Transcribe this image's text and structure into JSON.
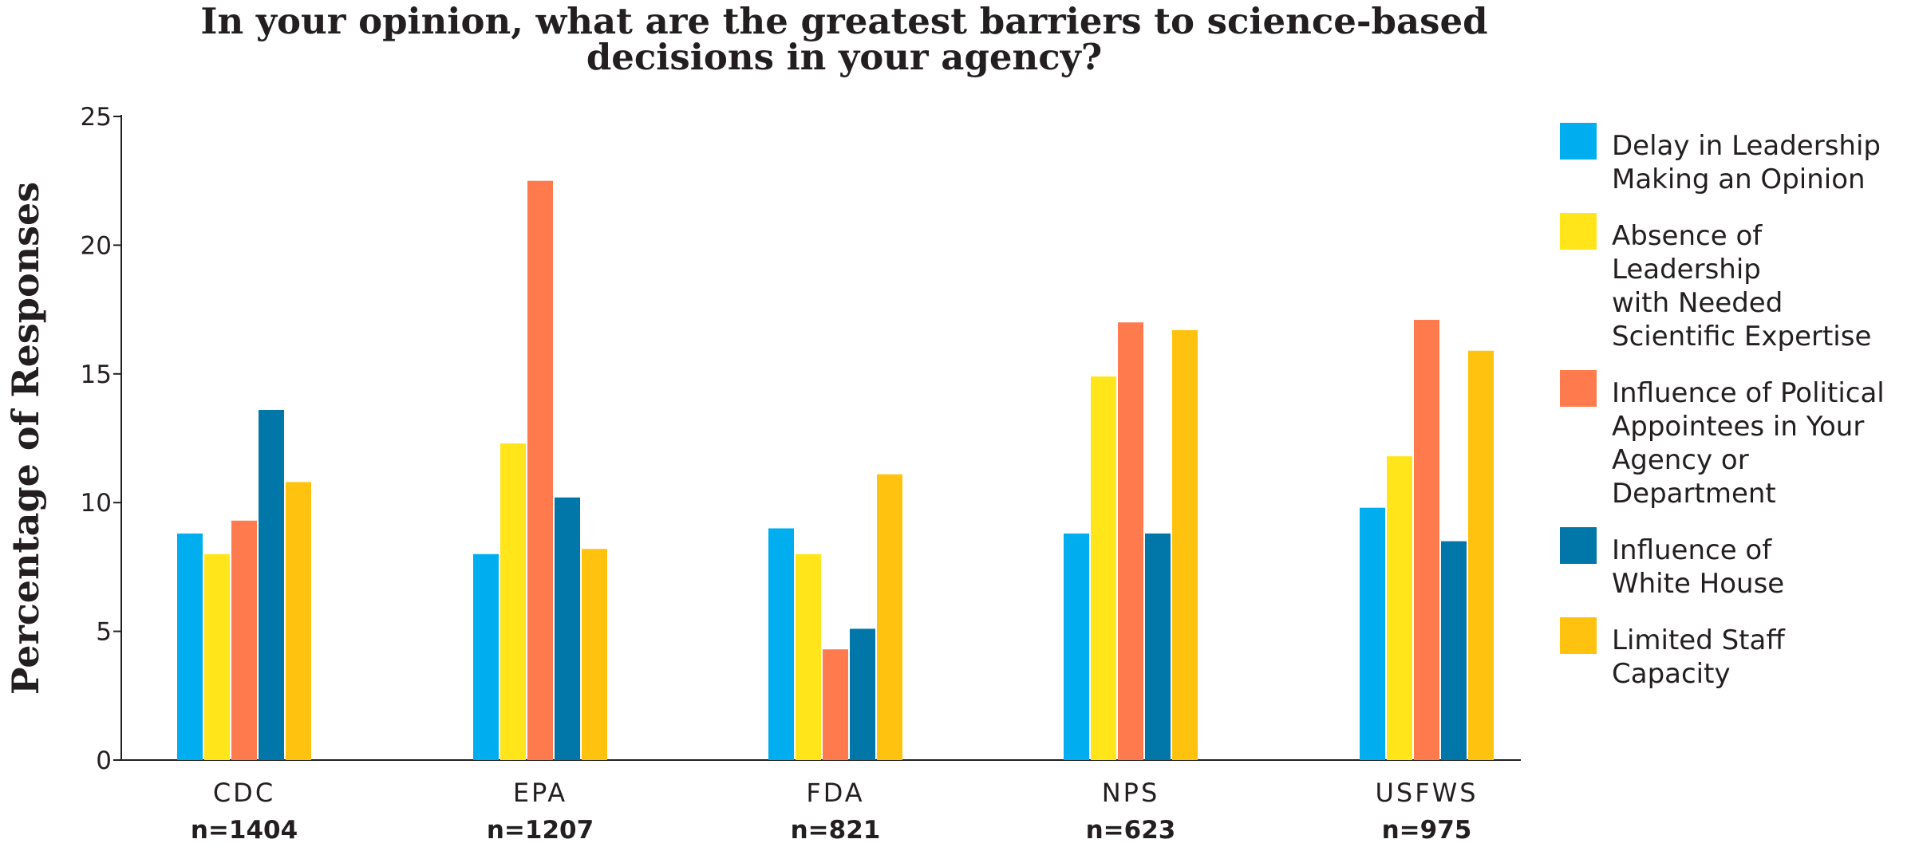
{
  "chart_data": {
    "type": "bar",
    "title": "In your opinion, what are the greatest barriers to science-based decisions in your agency?",
    "title_lines": [
      "In your opinion, what are the greatest barriers to science-based",
      "decisions in your agency?"
    ],
    "ylabel": "Percentage of Responses",
    "xlabel": "",
    "ylim": [
      0,
      25
    ],
    "yticks": [
      0,
      5,
      10,
      15,
      20,
      25
    ],
    "grid": false,
    "legend_position": "right",
    "categories": [
      "CDC",
      "EPA",
      "FDA",
      "NPS",
      "USFWS"
    ],
    "category_sublabels": [
      "n=1404",
      "n=1207",
      "n=821",
      "n=623",
      "n=975"
    ],
    "series": [
      {
        "name": "Delay in Leadership Making an Opinion",
        "legend_lines": [
          "Delay in Leadership",
          "Making an Opinion"
        ],
        "color": "#00aeef",
        "values": [
          8.8,
          8.0,
          9.0,
          8.8,
          9.8
        ]
      },
      {
        "name": "Absence of Leadership with Needed Scientific Expertise",
        "legend_lines": [
          "Absence of",
          "Leadership",
          "with Needed",
          "Scientific Expertise"
        ],
        "color": "#ffe51a",
        "values": [
          8.0,
          12.3,
          8.0,
          14.9,
          11.8
        ]
      },
      {
        "name": "Influence of Political Appointees in Your Agency or Department",
        "legend_lines": [
          "Influence of Political",
          "Appointees in Your",
          "Agency or",
          "Department"
        ],
        "color": "#ff7a4d",
        "values": [
          9.3,
          22.5,
          4.3,
          17.0,
          17.1
        ]
      },
      {
        "name": "Influence of White House",
        "legend_lines": [
          "Influence of",
          "White House"
        ],
        "color": "#0077a8",
        "values": [
          13.6,
          10.2,
          5.1,
          8.8,
          8.5
        ]
      },
      {
        "name": "Limited Staff Capacity",
        "legend_lines": [
          "Limited Staff",
          "Capacity"
        ],
        "color": "#ffc20e",
        "values": [
          10.8,
          8.2,
          11.1,
          16.7,
          15.9
        ]
      }
    ]
  }
}
